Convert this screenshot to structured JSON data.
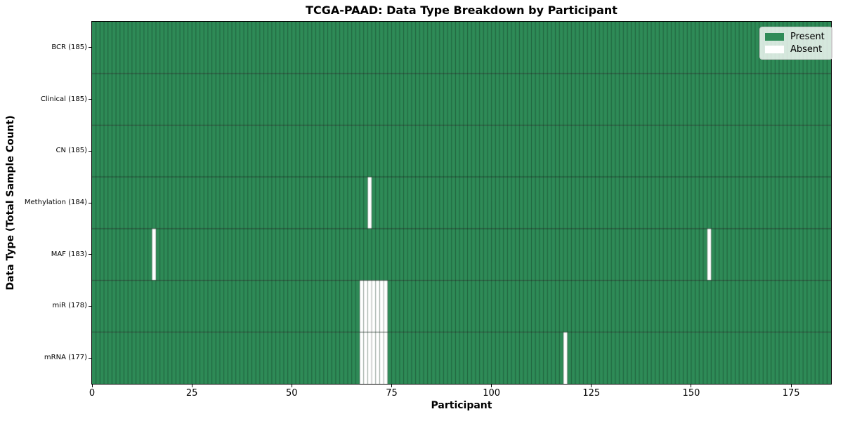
{
  "chart_data": {
    "type": "heatmap",
    "title": "TCGA-PAAD: Data Type Breakdown by Participant",
    "xlabel": "Participant",
    "ylabel": "Data Type (Total Sample Count)",
    "n_participants": 185,
    "x_ticks": [
      0,
      25,
      50,
      75,
      100,
      125,
      150,
      175
    ],
    "x_range": [
      0,
      185
    ],
    "grid": false,
    "legend_position": "upper right",
    "rows": [
      {
        "data_type": "BCR",
        "label": "BCR (185)",
        "present_count": 185,
        "absent_participants": []
      },
      {
        "data_type": "Clinical",
        "label": "Clinical (185)",
        "present_count": 185,
        "absent_participants": []
      },
      {
        "data_type": "CN",
        "label": "CN (185)",
        "present_count": 185,
        "absent_participants": []
      },
      {
        "data_type": "Methylation",
        "label": "Methylation (184)",
        "present_count": 184,
        "absent_participants": [
          69
        ]
      },
      {
        "data_type": "MAF",
        "label": "MAF (183)",
        "present_count": 183,
        "absent_participants": [
          15,
          154
        ]
      },
      {
        "data_type": "miR",
        "label": "miR (178)",
        "present_count": 178,
        "absent_participants": [
          67,
          68,
          69,
          70,
          71,
          72,
          73
        ]
      },
      {
        "data_type": "mRNA",
        "label": "mRNA (177)",
        "present_count": 177,
        "absent_participants": [
          67,
          68,
          69,
          70,
          71,
          72,
          73,
          118
        ]
      }
    ],
    "legend": [
      {
        "label": "Present",
        "color": "#2e8b57"
      },
      {
        "label": "Absent",
        "color": "#ffffff"
      }
    ],
    "colors": {
      "present": "#2e8b57",
      "absent": "#ffffff",
      "cell_edge": "rgba(0,0,0,0.45)",
      "row_edge": "rgba(0,0,0,0.6)",
      "spine": "#000000",
      "background": "#ffffff"
    }
  }
}
